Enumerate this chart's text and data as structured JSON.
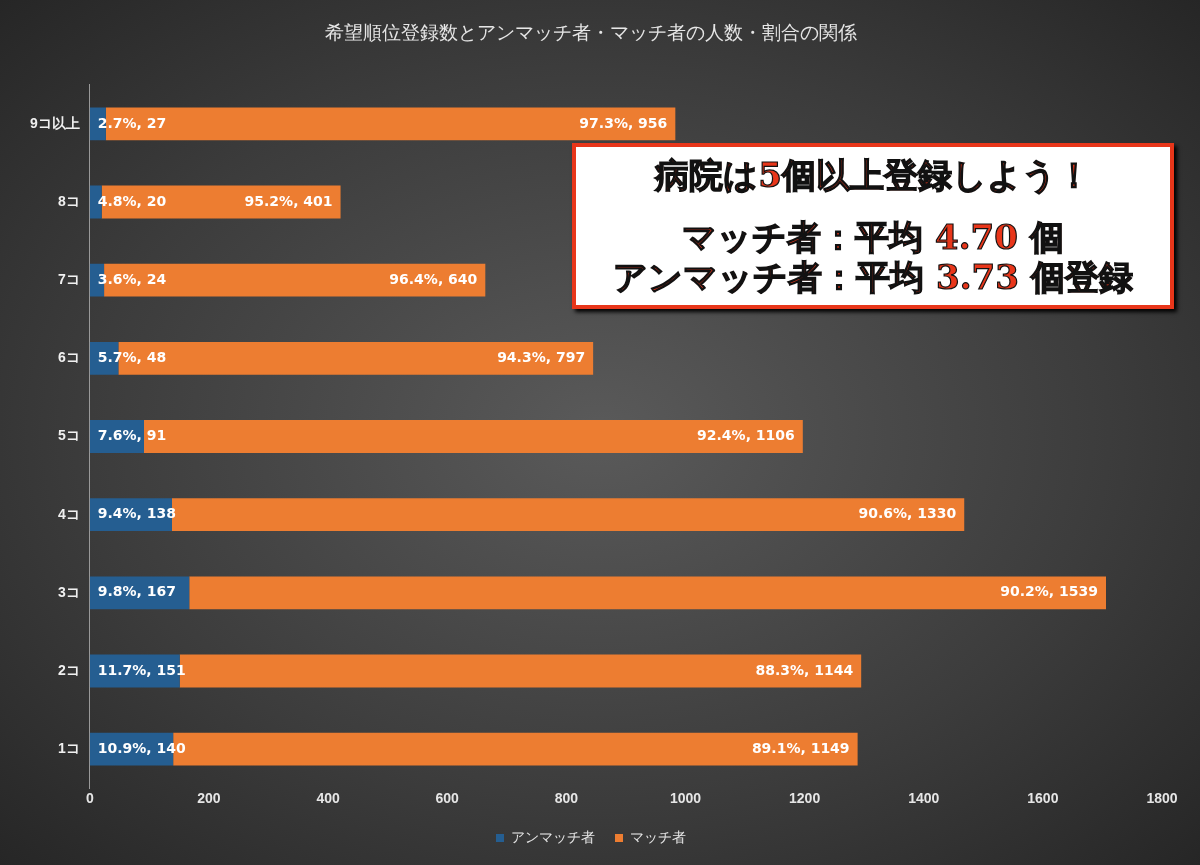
{
  "chart_data": {
    "type": "bar",
    "orientation": "horizontal",
    "stacked": true,
    "title": "希望順位登録数とアンマッチ者・マッチ者の人数・割合の関係",
    "categories": [
      "9コ以上",
      "8コ",
      "7コ",
      "6コ",
      "5コ",
      "4コ",
      "3コ",
      "2コ",
      "1コ"
    ],
    "series": [
      {
        "name": "アンマッチ者",
        "color": "#255e91",
        "values": [
          27,
          20,
          24,
          48,
          91,
          138,
          167,
          151,
          140
        ],
        "value_labels": [
          "2.7%, 27",
          "4.8%, 20",
          "3.6%, 24",
          "5.7%, 48",
          "7.6%, 91",
          "9.4%, 138",
          "9.8%, 167",
          "11.7%, 151",
          "10.9%, 140"
        ]
      },
      {
        "name": "マッチ者",
        "color": "#ed7d31",
        "values": [
          956,
          401,
          640,
          797,
          1106,
          1330,
          1539,
          1144,
          1149
        ],
        "value_labels": [
          "97.3%, 956",
          "95.2%, 401",
          "96.4%, 640",
          "94.3%, 797",
          "92.4%, 1106",
          "90.6%, 1330",
          "90.2%, 1539",
          "88.3%, 1144",
          "89.1%, 1149"
        ]
      }
    ],
    "xlim": [
      0,
      1800
    ],
    "xticks": [
      0,
      200,
      400,
      600,
      800,
      1000,
      1200,
      1400,
      1600,
      1800
    ],
    "grid": false,
    "legend": "bottom",
    "annotations": [
      "病院は5個以上登録しよう！",
      "マッチ者：平均 4.70 個",
      "アンマッチ者：平均 3.73 個登録"
    ]
  }
}
